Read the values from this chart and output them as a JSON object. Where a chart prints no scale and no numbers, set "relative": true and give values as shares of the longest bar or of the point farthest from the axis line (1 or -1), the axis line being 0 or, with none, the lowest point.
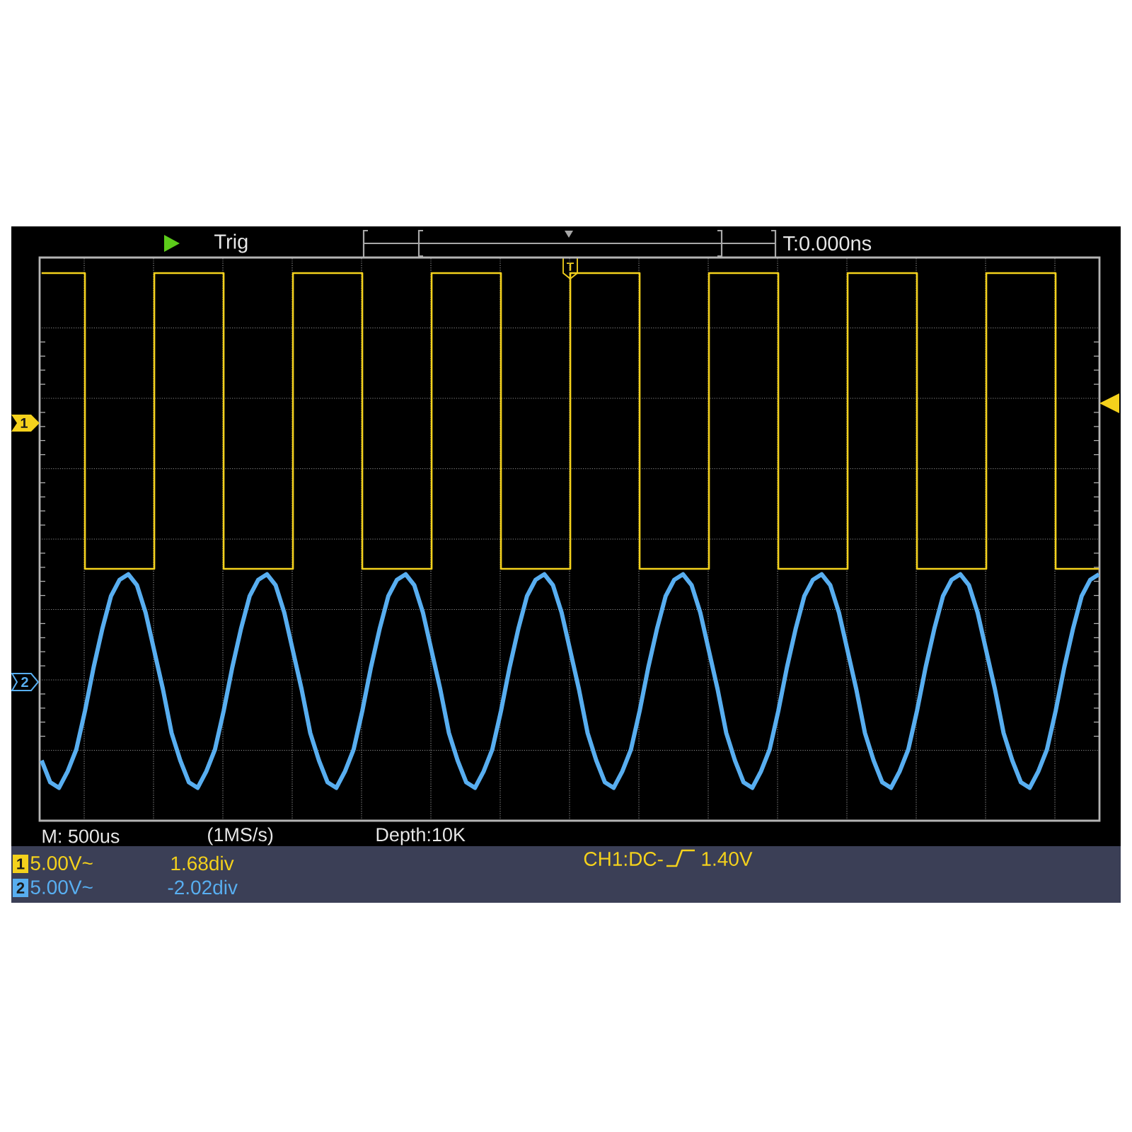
{
  "chart_data": {
    "type": "line",
    "relative": true,
    "grid": true,
    "categories": [
      null,
      null,
      null,
      null,
      null,
      null,
      null,
      null,
      null,
      null,
      null,
      null,
      null,
      null,
      null,
      null,
      null,
      null,
      null,
      null,
      null,
      null,
      null,
      null,
      null,
      null,
      null,
      null,
      null,
      null,
      null,
      null,
      null,
      null,
      null,
      null,
      null,
      null,
      null,
      null,
      null,
      null,
      null,
      null,
      null,
      null,
      null,
      null,
      null,
      null,
      null,
      null,
      null,
      null,
      null,
      null,
      null,
      null,
      null,
      null,
      null,
      null,
      null,
      null,
      null,
      null,
      null,
      null,
      null,
      null,
      null,
      null,
      null,
      null,
      null,
      null,
      null,
      null,
      null,
      null,
      null,
      null,
      null,
      null,
      null,
      null,
      null,
      null,
      null,
      null,
      null,
      null,
      null,
      null,
      null,
      null,
      null,
      null,
      null,
      null,
      null,
      null,
      null,
      null,
      null,
      null,
      null,
      null,
      null,
      null,
      null,
      null,
      null,
      null,
      null,
      null,
      null,
      null,
      null,
      null,
      null,
      null,
      null
    ],
    "series": [
      {
        "type": "step",
        "color": "#f4d11c",
        "values": [
          1,
          1,
          1,
          1,
          1,
          0.46,
          0.46,
          0.46,
          0.46,
          0.46,
          0.46,
          0.46,
          0.46,
          1,
          1,
          1,
          1,
          1,
          1,
          1,
          1,
          0.46,
          0.46,
          0.46,
          0.46,
          0.46,
          0.46,
          0.46,
          0.46,
          1,
          1,
          1,
          1,
          1,
          1,
          1,
          1,
          0.46,
          0.46,
          0.46,
          0.46,
          0.46,
          0.46,
          0.46,
          0.46,
          1,
          1,
          1,
          1,
          1,
          1,
          1,
          1,
          0.46,
          0.46,
          0.46,
          0.46,
          0.46,
          0.46,
          0.46,
          0.46,
          1,
          1,
          1,
          1,
          1,
          1,
          1,
          1,
          0.46,
          0.46,
          0.46,
          0.46,
          0.46,
          0.46,
          0.46,
          0.46,
          1,
          1,
          1,
          1,
          1,
          1,
          1,
          1,
          0.46,
          0.46,
          0.46,
          0.46,
          0.46,
          0.46,
          0.46,
          0.46,
          1,
          1,
          1,
          1,
          1,
          1,
          1,
          1,
          0.46,
          0.46,
          0.46,
          0.46,
          0.46,
          0.46,
          0.46,
          0.46,
          1,
          1,
          1,
          1,
          1,
          1,
          1,
          1,
          0.46,
          0.46,
          0.46,
          0.46,
          0.46,
          0.46
        ]
      },
      {
        "color": "#58aef0",
        "values": [
          0.11,
          0.07,
          0.06,
          0.09,
          0.13,
          0.2,
          0.28,
          0.35,
          0.41,
          0.44,
          0.45,
          0.43,
          0.38,
          0.31,
          0.24,
          0.16,
          0.11,
          0.07,
          0.06,
          0.09,
          0.13,
          0.2,
          0.28,
          0.35,
          0.41,
          0.44,
          0.45,
          0.43,
          0.38,
          0.31,
          0.24,
          0.16,
          0.11,
          0.07,
          0.06,
          0.09,
          0.13,
          0.2,
          0.28,
          0.35,
          0.41,
          0.44,
          0.45,
          0.43,
          0.38,
          0.31,
          0.24,
          0.16,
          0.11,
          0.07,
          0.06,
          0.09,
          0.13,
          0.2,
          0.28,
          0.35,
          0.41,
          0.44,
          0.45,
          0.43,
          0.38,
          0.31,
          0.24,
          0.16,
          0.11,
          0.07,
          0.06,
          0.09,
          0.13,
          0.2,
          0.28,
          0.35,
          0.41,
          0.44,
          0.45,
          0.43,
          0.38,
          0.31,
          0.24,
          0.16,
          0.11,
          0.07,
          0.06,
          0.09,
          0.13,
          0.2,
          0.28,
          0.35,
          0.41,
          0.44,
          0.45,
          0.43,
          0.38,
          0.31,
          0.24,
          0.16,
          0.11,
          0.07,
          0.06,
          0.09,
          0.13,
          0.2,
          0.28,
          0.35,
          0.41,
          0.44,
          0.45,
          0.43,
          0.38,
          0.31,
          0.24,
          0.16,
          0.11,
          0.07,
          0.06,
          0.09,
          0.13,
          0.2,
          0.28,
          0.35,
          0.41,
          0.44,
          0.45
        ]
      }
    ],
    "annotations": [
      "Trig",
      "T:0.000ns",
      "T",
      "1",
      "2",
      "M: 500us",
      "(1MS/s)",
      "Depth:10K",
      "1",
      "5.00V~",
      "1.68div",
      "CH1:DC-",
      "1.40V",
      "2",
      "5.00V~",
      "-2.02div"
    ]
  }
}
